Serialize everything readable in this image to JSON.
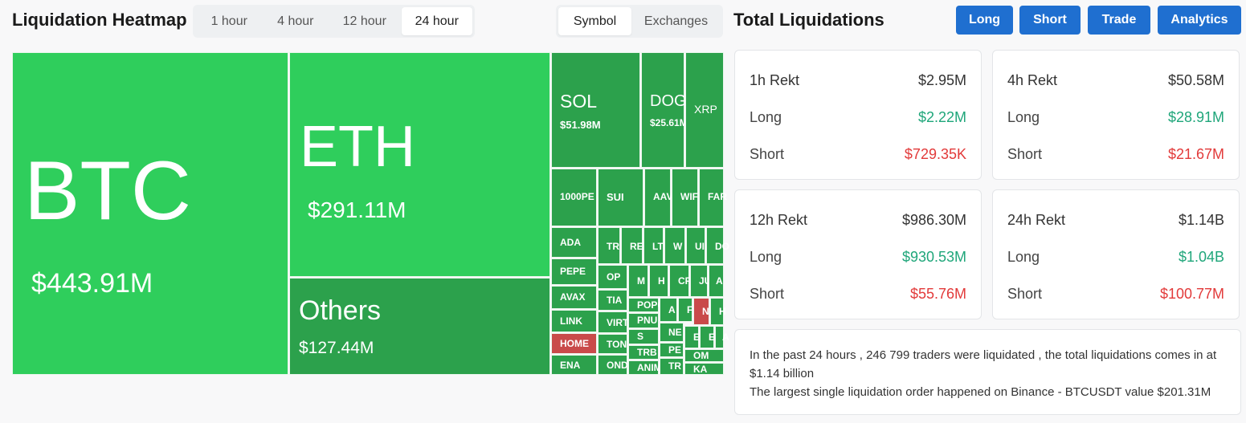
{
  "heatmap": {
    "title": "Liquidation Heatmap",
    "time_options": [
      "1 hour",
      "4 hour",
      "12 hour",
      "24 hour"
    ],
    "active_time": "24 hour",
    "group_options": [
      "Symbol",
      "Exchanges"
    ],
    "active_group": "Symbol"
  },
  "colors": {
    "bright_green": "#2fce5c",
    "green": "#2ca14c",
    "red": "#c94a4a",
    "accent_blue": "#1f6fd0",
    "long_green": "#1fa67a",
    "short_red": "#e23a3a"
  },
  "treemap": {
    "big": [
      {
        "symbol": "BTC",
        "value": "$443.91M"
      },
      {
        "symbol": "ETH",
        "value": "$291.11M"
      },
      {
        "symbol": "Others",
        "value": "$127.44M"
      }
    ],
    "medium": [
      {
        "symbol": "SOL",
        "value": "$51.98M"
      },
      {
        "symbol": "DOG",
        "value": "$25.61M"
      },
      {
        "symbol": "XRP",
        "value": ""
      }
    ],
    "small": [
      "1000PE",
      "SUI",
      "AAV",
      "WIF",
      "FAR",
      "ADA",
      "TR",
      "RE",
      "LT",
      "W",
      "UI",
      "DO",
      "PEPE",
      "OP",
      "M",
      "H",
      "CF",
      "JU",
      "A",
      "AVAX",
      "TIA",
      "POPC",
      "A",
      "F",
      "N",
      "H",
      "LINK",
      "VIRT",
      "PNU",
      "S",
      "NE",
      "E",
      "E",
      "A",
      "HOME",
      "TON",
      "TRB",
      "PE",
      "OM",
      "ENA",
      "OND",
      "ANIM",
      "TR",
      "KA"
    ]
  },
  "totals": {
    "title": "Total Liquidations",
    "buttons": [
      "Long",
      "Short",
      "Trade",
      "Analytics"
    ],
    "cards": [
      {
        "label": "1h Rekt",
        "total": "$2.95M",
        "long_label": "Long",
        "long": "$2.22M",
        "short_label": "Short",
        "short": "$729.35K"
      },
      {
        "label": "4h Rekt",
        "total": "$50.58M",
        "long_label": "Long",
        "long": "$28.91M",
        "short_label": "Short",
        "short": "$21.67M"
      },
      {
        "label": "12h Rekt",
        "total": "$986.30M",
        "long_label": "Long",
        "long": "$930.53M",
        "short_label": "Short",
        "short": "$55.76M"
      },
      {
        "label": "24h Rekt",
        "total": "$1.14B",
        "long_label": "Long",
        "long": "$1.04B",
        "short_label": "Short",
        "short": "$100.77M"
      }
    ],
    "summary_line1": "In the past 24 hours , 246 799 traders were liquidated , the total liquidations comes in at $1.14 billion",
    "summary_line2": "The largest single liquidation order happened on Binance - BTCUSDT value $201.31M"
  }
}
